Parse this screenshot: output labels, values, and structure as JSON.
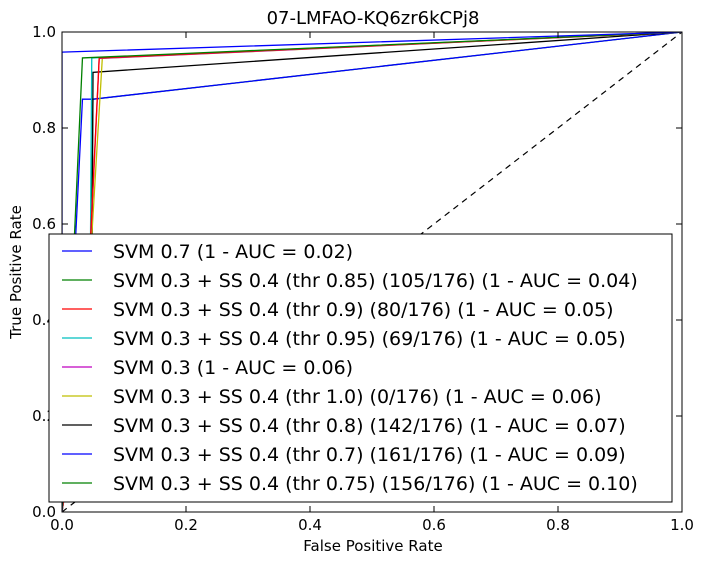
{
  "chart_data": {
    "type": "line",
    "title": "07-LMFAO-KQ6zr6kCPj8",
    "xlabel": "False Positive Rate",
    "ylabel": "True Positive Rate",
    "xlim": [
      0.0,
      1.0
    ],
    "ylim": [
      0.0,
      1.0
    ],
    "xticks": [
      "0.0",
      "0.2",
      "0.4",
      "0.6",
      "0.8",
      "1.0"
    ],
    "yticks": [
      "0.0",
      "0.2",
      "0.4",
      "0.6",
      "0.8",
      "1.0"
    ],
    "grid": false,
    "legend_position": "lower-right",
    "baseline": {
      "x": [
        0,
        1
      ],
      "y": [
        0,
        1
      ],
      "style": "dashed",
      "color": "#000000"
    },
    "series": [
      {
        "name": "SVM 0.7 (1 - AUC = 0.02)",
        "color": "#0000ff",
        "x": [
          0,
          0,
          1
        ],
        "y": [
          0,
          0.958,
          1
        ]
      },
      {
        "name": "SVM 0.3 + SS 0.4 (thr 0.85) (105/176) (1 - AUC = 0.04)",
        "color": "#008000",
        "x": [
          0,
          0.033,
          1
        ],
        "y": [
          0,
          0.946,
          1
        ]
      },
      {
        "name": "SVM 0.3 + SS 0.4 (thr 0.9) (80/176) (1 - AUC = 0.05)",
        "color": "#ff0000",
        "x": [
          0,
          0.04,
          0.06,
          1
        ],
        "y": [
          0,
          0.41,
          0.946,
          1
        ]
      },
      {
        "name": "SVM 0.3 + SS 0.4 (thr 0.95) (69/176) (1 - AUC = 0.05)",
        "color": "#00bfbf",
        "x": [
          0,
          0.045,
          0.048,
          1
        ],
        "y": [
          0,
          0.39,
          0.946,
          1
        ]
      },
      {
        "name": "SVM 0.3 (1 - AUC = 0.06)",
        "color": "#bf00bf",
        "x": [
          0,
          0.04,
          0.06,
          1
        ],
        "y": [
          0,
          0.4,
          0.945,
          1
        ]
      },
      {
        "name": "SVM 0.3 + SS 0.4 (thr 1.0) (0/176) (1 - AUC = 0.06)",
        "color": "#bfbf00",
        "x": [
          0,
          0.04,
          0.065,
          1
        ],
        "y": [
          0,
          0.4,
          0.945,
          1
        ]
      },
      {
        "name": "SVM 0.3 + SS 0.4 (thr 0.8) (142/176) (1 - AUC = 0.07)",
        "color": "#000000",
        "x": [
          0,
          0.048,
          0.05,
          1
        ],
        "y": [
          0,
          0.4,
          0.916,
          1
        ]
      },
      {
        "name": "SVM 0.3 + SS 0.4 (thr 0.7) (161/176) (1 - AUC = 0.09)",
        "color": "#0000ff",
        "x": [
          0,
          0.033,
          0.05,
          1
        ],
        "y": [
          0,
          0.86,
          0.86,
          1
        ]
      },
      {
        "name": "SVM 0.3 + SS 0.4 (thr 0.75) (156/176) (1 - AUC = 0.10)",
        "color": "#008000",
        "x": [
          0,
          0.045,
          0.05,
          1
        ],
        "y": [
          0,
          0.4,
          0.86,
          1
        ]
      }
    ]
  }
}
